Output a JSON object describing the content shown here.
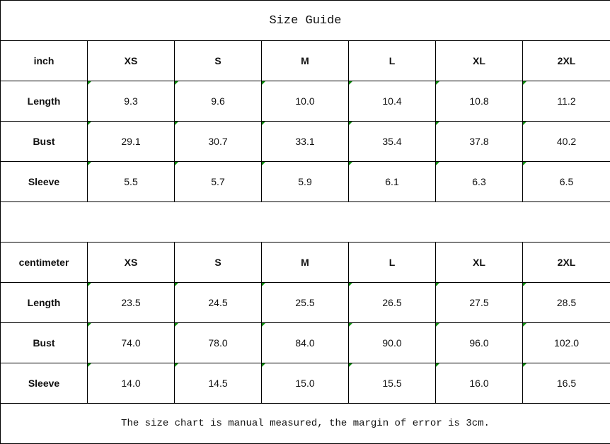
{
  "title": "Size Guide",
  "sizes": [
    "XS",
    "S",
    "M",
    "L",
    "XL",
    "2XL"
  ],
  "inch": {
    "unit_label": "inch",
    "rows": [
      {
        "label": "Length",
        "values": [
          "9.3",
          "9.6",
          "10.0",
          "10.4",
          "10.8",
          "11.2"
        ]
      },
      {
        "label": "Bust",
        "values": [
          "29.1",
          "30.7",
          "33.1",
          "35.4",
          "37.8",
          "40.2"
        ]
      },
      {
        "label": "Sleeve",
        "values": [
          "5.5",
          "5.7",
          "5.9",
          "6.1",
          "6.3",
          "6.5"
        ]
      }
    ]
  },
  "centimeter": {
    "unit_label": "centimeter",
    "rows": [
      {
        "label": "Length",
        "values": [
          "23.5",
          "24.5",
          "25.5",
          "26.5",
          "27.5",
          "28.5"
        ]
      },
      {
        "label": "Bust",
        "values": [
          "74.0",
          "78.0",
          "84.0",
          "90.0",
          "96.0",
          "102.0"
        ]
      },
      {
        "label": "Sleeve",
        "values": [
          "14.0",
          "14.5",
          "15.0",
          "15.5",
          "16.0",
          "16.5"
        ]
      }
    ]
  },
  "footnote": "The size chart is manual measured, the margin of error is 3cm.",
  "colors": {
    "cell_marker": "#0a8a0a",
    "border": "#000000"
  }
}
